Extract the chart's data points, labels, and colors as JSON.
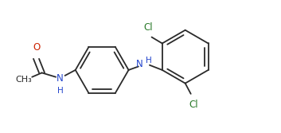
{
  "background": "#ffffff",
  "bond_color": "#2a2a2a",
  "o_color": "#cc2200",
  "cl_color": "#2a7a2a",
  "nh_color": "#2244cc",
  "lw": 1.3,
  "fs": 8.5,
  "fig_w": 3.53,
  "fig_h": 1.67,
  "dpi": 100,
  "r": 0.38,
  "xlim": [
    -1.45,
    2.55
  ],
  "ylim": [
    -0.78,
    0.88
  ]
}
